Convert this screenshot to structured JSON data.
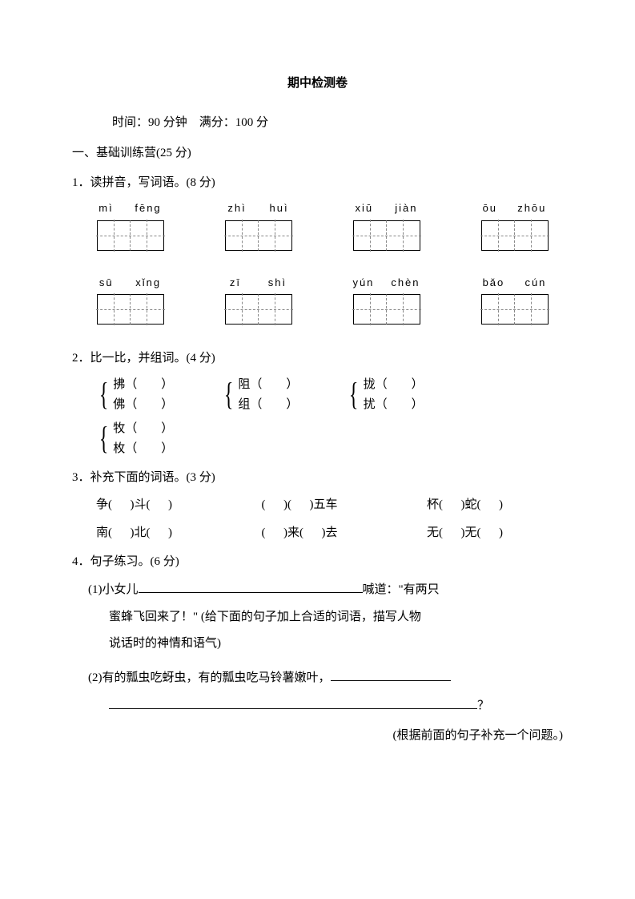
{
  "title": "期中检测卷",
  "meta": {
    "time_label": "时间：",
    "time_value": "90 分钟",
    "full_label": "满分：",
    "full_value": "100 分"
  },
  "section1": {
    "heading": "一、基础训练营(25 分)"
  },
  "q1": {
    "heading": "1．读拼音，写词语。(8 分)",
    "rows": [
      [
        {
          "p1": "mì",
          "p2": "fēng"
        },
        {
          "p1": "zhì",
          "p2": "huì"
        },
        {
          "p1": "xiū",
          "p2": "jiàn"
        },
        {
          "p1": "ōu",
          "p2": "zhōu"
        }
      ],
      [
        {
          "p1": "sū",
          "p2": "xǐng"
        },
        {
          "p1": "zī",
          "p2": "shì"
        },
        {
          "p1": "yún",
          "p2": "chèn"
        },
        {
          "p1": "bǎo",
          "p2": "cún"
        }
      ]
    ]
  },
  "q2": {
    "heading": "2．比一比，并组词。(4 分)",
    "row1": [
      {
        "a": "拂（        ）",
        "b": "佛（        ）"
      },
      {
        "a": "阻（        ）",
        "b": "组（        ）"
      },
      {
        "a": "拢（        ）",
        "b": "扰（        ）"
      }
    ],
    "row2": [
      {
        "a": "牧（        ）",
        "b": "枚（        ）"
      }
    ]
  },
  "q3": {
    "heading": "3．补充下面的词语。(3 分)",
    "rows": [
      [
        "争(      )斗(      )",
        "(      )(      )五车",
        "杯(      )蛇(      )"
      ],
      [
        "南(      )北(      )",
        "(      )来(      )去",
        "无(      )无(      )"
      ]
    ]
  },
  "q4": {
    "heading": "4．句子练习。(6 分)",
    "sub1": {
      "prefix": "(1)小女儿",
      "after": "喊道：\"有两只",
      "line2": "蜜蜂飞回来了！\" (给下面的句子加上合适的词语，描写人物",
      "line3": "说话时的神情和语气)"
    },
    "sub2": {
      "line1": "(2)有的瓢虫吃蚜虫，有的瓢虫吃马铃薯嫩叶，",
      "q_mark": "？",
      "note": "(根据前面的句子补充一个问题。)"
    }
  }
}
